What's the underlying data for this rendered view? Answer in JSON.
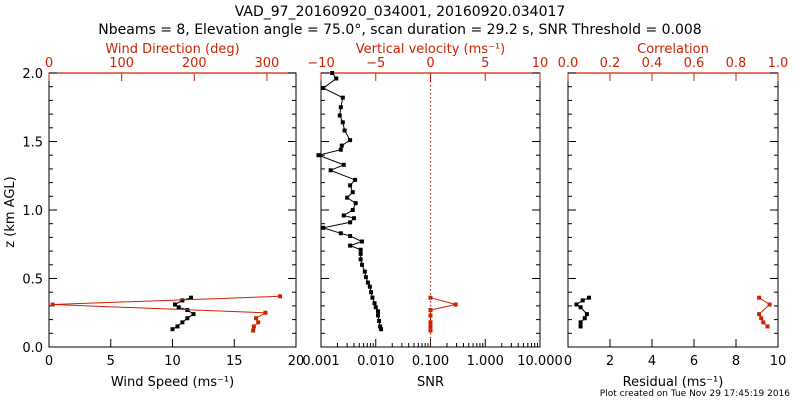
{
  "title_line1": "VAD_97_20160920_034001, 20160920.034017",
  "title_line2": "Nbeams = 8, Elevation angle = 75.0°, scan duration = 29.2 s, SNR Threshold = 0.008",
  "footer": "Plot created on Tue Nov 29 17:45:19 2016",
  "colors": {
    "primary": "#000000",
    "secondary": "#cc2200"
  },
  "z_axis": {
    "label": "z (km AGL)",
    "ylim": [
      0,
      2
    ],
    "ticks": [
      "0.0",
      "0.5",
      "1.0",
      "1.5",
      "2.0"
    ]
  },
  "chart_data": [
    {
      "type": "line",
      "panel": "wind",
      "bottom_axis": {
        "label": "Wind Speed (ms⁻¹)",
        "range": [
          0,
          20
        ],
        "ticks": [
          "0",
          "5",
          "10",
          "15",
          "20"
        ]
      },
      "top_axis": {
        "label": "Wind Direction (deg)",
        "range": [
          0,
          340
        ],
        "ticks": [
          "0",
          "100",
          "200",
          "300"
        ]
      },
      "series": [
        {
          "axis": "bottom",
          "color": "black",
          "points": [
            [
              11.5,
              0.36
            ],
            [
              10.8,
              0.34
            ],
            [
              10.2,
              0.31
            ],
            [
              10.5,
              0.29
            ],
            [
              11.2,
              0.27
            ],
            [
              11.7,
              0.24
            ],
            [
              11.2,
              0.21
            ],
            [
              10.8,
              0.18
            ],
            [
              10.4,
              0.15
            ],
            [
              10.0,
              0.13
            ]
          ]
        },
        {
          "axis": "top",
          "color": "red",
          "points": [
            [
              318,
              0.37
            ],
            [
              5,
              0.31
            ],
            [
              298,
              0.25
            ],
            [
              285,
              0.21
            ],
            [
              288,
              0.18
            ],
            [
              282,
              0.15
            ],
            [
              281,
              0.12
            ]
          ]
        }
      ]
    },
    {
      "type": "line",
      "panel": "snr",
      "bottom_axis": {
        "label": "SNR",
        "scale": "log",
        "range": [
          0.001,
          10
        ],
        "ticks": [
          "0.001",
          "0.010",
          "0.100",
          "1.000",
          "10.000"
        ]
      },
      "top_axis": {
        "label": "Vertical velocity (ms⁻¹)",
        "range": [
          -10,
          10
        ],
        "ticks": [
          "−10",
          "−5",
          "0",
          "5",
          "10"
        ]
      },
      "reference_line": {
        "axis": "top",
        "value": 0
      },
      "series": [
        {
          "axis": "bottom",
          "color": "black",
          "points": [
            [
              0.0016,
              2.0
            ],
            [
              0.0019,
              1.96
            ],
            [
              0.0011,
              1.89
            ],
            [
              0.0025,
              1.82
            ],
            [
              0.0023,
              1.75
            ],
            [
              0.0022,
              1.69
            ],
            [
              0.0025,
              1.64
            ],
            [
              0.0027,
              1.58
            ],
            [
              0.0034,
              1.51
            ],
            [
              0.0024,
              1.47
            ],
            [
              0.0023,
              1.44
            ],
            [
              0.0009,
              1.4
            ],
            [
              0.0026,
              1.33
            ],
            [
              0.0015,
              1.29
            ],
            [
              0.0042,
              1.22
            ],
            [
              0.0034,
              1.18
            ],
            [
              0.0038,
              1.13
            ],
            [
              0.003,
              1.09
            ],
            [
              0.0043,
              1.05
            ],
            [
              0.0038,
              1.0
            ],
            [
              0.0026,
              0.96
            ],
            [
              0.004,
              0.94
            ],
            [
              0.0034,
              0.91
            ],
            [
              0.0011,
              0.87
            ],
            [
              0.0023,
              0.83
            ],
            [
              0.0034,
              0.81
            ],
            [
              0.0056,
              0.77
            ],
            [
              0.0034,
              0.74
            ],
            [
              0.0053,
              0.71
            ],
            [
              0.0053,
              0.68
            ],
            [
              0.0053,
              0.64
            ],
            [
              0.0056,
              0.6
            ],
            [
              0.0063,
              0.55
            ],
            [
              0.0066,
              0.51
            ],
            [
              0.0072,
              0.47
            ],
            [
              0.0078,
              0.44
            ],
            [
              0.0082,
              0.4
            ],
            [
              0.0087,
              0.36
            ],
            [
              0.0095,
              0.32
            ],
            [
              0.01,
              0.29
            ],
            [
              0.011,
              0.26
            ],
            [
              0.011,
              0.23
            ],
            [
              0.0115,
              0.19
            ],
            [
              0.012,
              0.15
            ],
            [
              0.0125,
              0.13
            ]
          ]
        },
        {
          "axis": "top",
          "color": "red",
          "points": [
            [
              0.0,
              0.36
            ],
            [
              2.3,
              0.31
            ],
            [
              0.0,
              0.27
            ],
            [
              0.0,
              0.23
            ],
            [
              0.0,
              0.18
            ],
            [
              0.0,
              0.15
            ],
            [
              0.0,
              0.12
            ]
          ]
        }
      ]
    },
    {
      "type": "line",
      "panel": "residual",
      "bottom_axis": {
        "label": "Residual (ms⁻¹)",
        "range": [
          0,
          10
        ],
        "ticks": [
          "0",
          "2",
          "4",
          "6",
          "8",
          "10"
        ]
      },
      "top_axis": {
        "label": "Correlation",
        "range": [
          0,
          1
        ],
        "ticks": [
          "0.0",
          "0.2",
          "0.4",
          "0.6",
          "0.8",
          "1.0"
        ]
      },
      "series": [
        {
          "axis": "bottom",
          "color": "black",
          "points": [
            [
              1.0,
              0.36
            ],
            [
              0.7,
              0.34
            ],
            [
              0.4,
              0.31
            ],
            [
              0.6,
              0.29
            ],
            [
              0.9,
              0.24
            ],
            [
              0.8,
              0.21
            ],
            [
              0.6,
              0.18
            ],
            [
              0.6,
              0.15
            ]
          ]
        },
        {
          "axis": "top",
          "color": "red",
          "points": [
            [
              0.91,
              0.36
            ],
            [
              0.96,
              0.31
            ],
            [
              0.91,
              0.24
            ],
            [
              0.92,
              0.21
            ],
            [
              0.93,
              0.18
            ],
            [
              0.95,
              0.15
            ]
          ]
        }
      ]
    }
  ]
}
